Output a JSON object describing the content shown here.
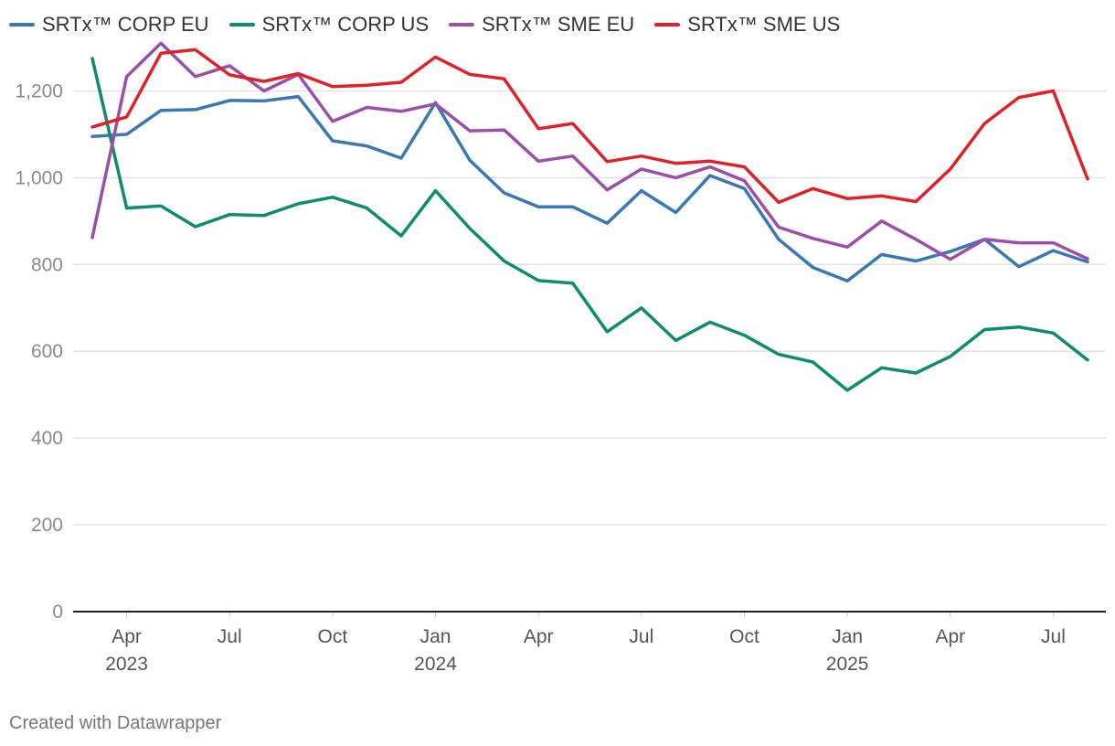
{
  "chart_data": {
    "type": "line",
    "title": "",
    "xlabel": "",
    "ylabel": "",
    "ylim": [
      0,
      1300
    ],
    "y_ticks": [
      0,
      200,
      400,
      600,
      800,
      1000,
      1200
    ],
    "y_tick_labels": [
      "0",
      "200",
      "400",
      "600",
      "800",
      "1,000",
      "1,200"
    ],
    "grid": true,
    "legend_position": "top-left",
    "x": [
      "2023-03",
      "2023-04",
      "2023-05",
      "2023-06",
      "2023-07",
      "2023-08",
      "2023-09",
      "2023-10",
      "2023-11",
      "2023-12",
      "2024-01",
      "2024-02",
      "2024-03",
      "2024-04",
      "2024-05",
      "2024-06",
      "2024-07",
      "2024-08",
      "2024-09",
      "2024-10",
      "2024-11",
      "2024-12",
      "2025-01",
      "2025-02",
      "2025-03",
      "2025-04",
      "2025-05",
      "2025-06",
      "2025-07",
      "2025-08"
    ],
    "x_ticks": [
      {
        "x": "2023-04",
        "label": "Apr",
        "year": "2023"
      },
      {
        "x": "2023-07",
        "label": "Jul",
        "year": ""
      },
      {
        "x": "2023-10",
        "label": "Oct",
        "year": ""
      },
      {
        "x": "2024-01",
        "label": "Jan",
        "year": "2024"
      },
      {
        "x": "2024-04",
        "label": "Apr",
        "year": ""
      },
      {
        "x": "2024-07",
        "label": "Jul",
        "year": ""
      },
      {
        "x": "2024-10",
        "label": "Oct",
        "year": ""
      },
      {
        "x": "2025-01",
        "label": "Jan",
        "year": "2025"
      },
      {
        "x": "2025-04",
        "label": "Apr",
        "year": ""
      },
      {
        "x": "2025-07",
        "label": "Jul",
        "year": ""
      }
    ],
    "series": [
      {
        "name": "SRTx™ CORP EU",
        "color": "#3a78b5",
        "values": [
          1095,
          1100,
          1155,
          1157,
          1178,
          1177,
          1187,
          1085,
          1073,
          1045,
          1173,
          1040,
          965,
          933,
          933,
          895,
          970,
          920,
          1005,
          975,
          858,
          793,
          762,
          823,
          808,
          830,
          858,
          795,
          832,
          806
        ]
      },
      {
        "name": "SRTx™ CORP US",
        "color": "#0e8c6e",
        "values": [
          1275,
          930,
          935,
          887,
          915,
          913,
          940,
          955,
          930,
          866,
          970,
          883,
          808,
          763,
          757,
          645,
          700,
          625,
          667,
          637,
          593,
          575,
          510,
          562,
          550,
          588,
          650,
          656,
          642,
          580
        ]
      },
      {
        "name": "SRTx™ SME EU",
        "color": "#9a4fa8",
        "values": [
          862,
          1233,
          1310,
          1233,
          1258,
          1200,
          1238,
          1130,
          1162,
          1153,
          1170,
          1108,
          1110,
          1038,
          1050,
          972,
          1020,
          1000,
          1025,
          993,
          886,
          860,
          840,
          900,
          858,
          812,
          858,
          850,
          850,
          813
        ]
      },
      {
        "name": "SRTx™ SME US",
        "color": "#e02228",
        "values": [
          1117,
          1140,
          1287,
          1295,
          1237,
          1222,
          1240,
          1210,
          1213,
          1220,
          1278,
          1238,
          1228,
          1113,
          1125,
          1037,
          1050,
          1033,
          1038,
          1025,
          943,
          975,
          952,
          958,
          945,
          1020,
          1125,
          1185,
          1200,
          997
        ]
      }
    ]
  },
  "footer": {
    "credit": "Created with Datawrapper"
  }
}
